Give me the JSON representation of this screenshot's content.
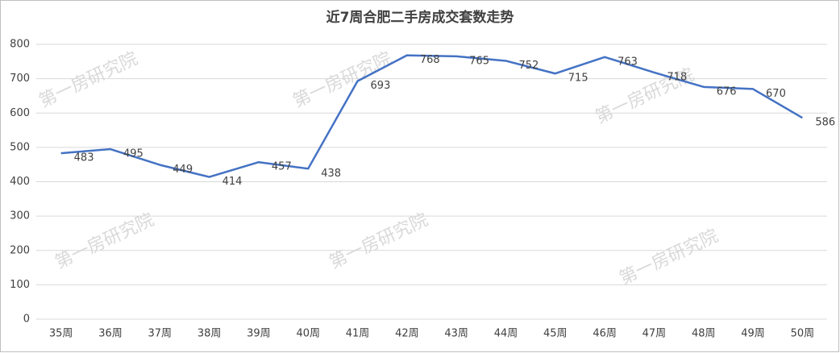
{
  "chart_data": {
    "type": "line",
    "title": "近7周合肥二手房成交套数走势",
    "categories": [
      "35周",
      "36周",
      "37周",
      "38周",
      "39周",
      "40周",
      "41周",
      "42周",
      "43周",
      "44周",
      "45周",
      "46周",
      "47周",
      "48周",
      "49周",
      "50周"
    ],
    "series": [
      {
        "name": "成交套数",
        "color": "#4472c4",
        "values": [
          483,
          495,
          449,
          414,
          457,
          438,
          693,
          768,
          765,
          752,
          715,
          763,
          718,
          676,
          670,
          586
        ]
      }
    ],
    "ylim": [
      0,
      800
    ],
    "yticks": [
      0,
      100,
      200,
      300,
      400,
      500,
      600,
      700,
      800
    ],
    "grid": true,
    "watermark": "第一房研究院"
  }
}
